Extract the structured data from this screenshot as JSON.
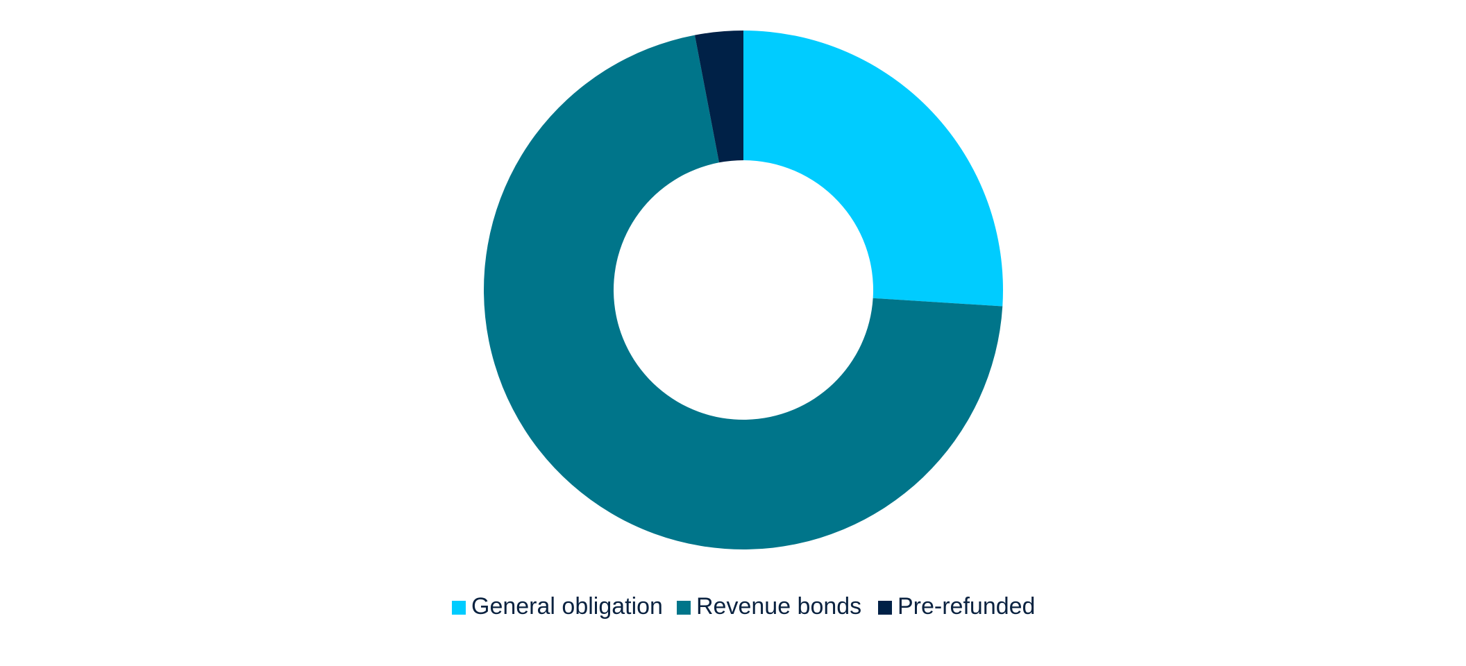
{
  "chart_data": {
    "type": "donut",
    "categories": [
      "General obligation",
      "Revenue bonds",
      "Pre-refunded"
    ],
    "values": [
      26,
      71,
      3
    ],
    "colors": [
      "#00ccff",
      "#00758a",
      "#002147"
    ],
    "legend": "bottom"
  }
}
